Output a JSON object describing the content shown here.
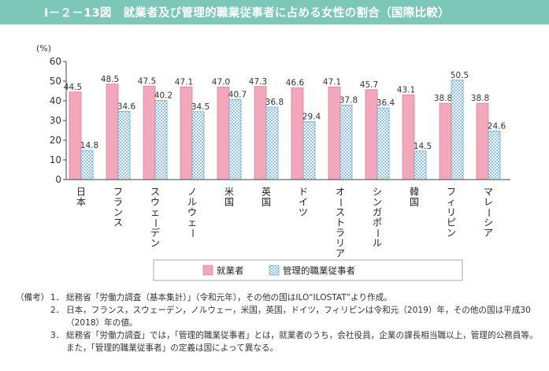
{
  "header": {
    "title": "Ⅰ－２－13図　就業者及び管理的職業従事者に占める女性の割合（国際比較）"
  },
  "chart_data": {
    "type": "bar",
    "title": "就業者及び管理的職業従事者に占める女性の割合（国際比較）",
    "ylabel": "(%)",
    "xlabel": "",
    "ylim": [
      0,
      60
    ],
    "yticks": [
      "0",
      "10",
      "20",
      "30",
      "40",
      "50",
      "60"
    ],
    "grid": false,
    "legend_position": "bottom-center",
    "categories": [
      "日本",
      "フランス",
      "スウェーデン",
      "ノルウェー",
      "米国",
      "英国",
      "ドイツ",
      "オーストラリア",
      "シンガポール",
      "韓国",
      "フィリピン",
      "マレーシア"
    ],
    "series": [
      {
        "name": "就業者",
        "color": "#f2a7bb",
        "pattern": "solid",
        "values": [
          44.5,
          48.5,
          47.5,
          47.1,
          47.0,
          47.3,
          46.6,
          47.1,
          45.7,
          43.1,
          38.8,
          38.8
        ]
      },
      {
        "name": "管理的職業従事者",
        "color": "#9cc9ea",
        "pattern": "checker",
        "values": [
          14.8,
          34.6,
          40.2,
          34.5,
          40.7,
          36.8,
          29.4,
          37.8,
          36.4,
          14.5,
          50.5,
          24.6
        ]
      }
    ]
  },
  "notes": {
    "label": "（備考）",
    "items": [
      {
        "num": "1．",
        "text": "総務省「労働力調査（基本集計）」（令和元年），その他の国はILO“ILOSTAT”より作成。"
      },
      {
        "num": "2．",
        "text": "日本，フランス，スウェーデン，ノルウェー，米国，英国，ドイツ，フィリピンは令和元（2019）年，その他の国は平成30（2018）年の値。"
      },
      {
        "num": "3．",
        "text": "総務省「労働力調査」では，「管理的職業従事者」とは，就業者のうち，会社役員，企業の課長相当職以上，管理的公務員等。また，「管理的職業従事者」の定義は国によって異なる。"
      }
    ]
  }
}
